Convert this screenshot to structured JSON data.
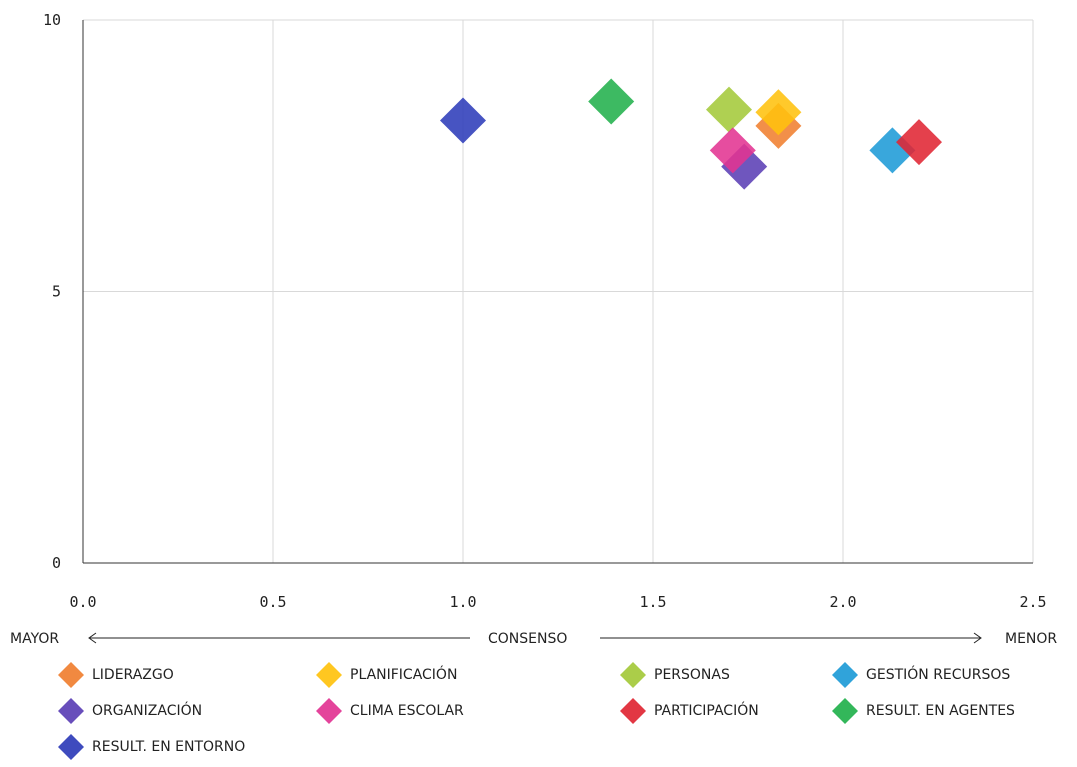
{
  "chart_data": {
    "type": "scatter",
    "title": "",
    "xlabel": "",
    "ylabel": "",
    "xlim": [
      0,
      2.5
    ],
    "ylim": [
      0,
      10
    ],
    "x_ticks": [
      "0.0",
      "0.5",
      "1.0",
      "1.5",
      "2.0",
      "2.5"
    ],
    "y_ticks": [
      "0",
      "5",
      "10"
    ],
    "grid": true,
    "marker": "diamond",
    "axis_caption": {
      "left": "MAYOR",
      "center": "CONSENSO",
      "right": "MENOR"
    },
    "legend_position": "bottom",
    "series": [
      {
        "name": "LIDERAZGO",
        "color": "#F07F30",
        "points": [
          {
            "x": 1.83,
            "y": 8.05
          }
        ]
      },
      {
        "name": "PLANIFICACIÓN",
        "color": "#FFC20E",
        "points": [
          {
            "x": 1.83,
            "y": 8.3
          }
        ]
      },
      {
        "name": "PERSONAS",
        "color": "#A4C93A",
        "points": [
          {
            "x": 1.7,
            "y": 8.35
          }
        ]
      },
      {
        "name": "GESTIÓN RECURSOS",
        "color": "#1E9BD7",
        "points": [
          {
            "x": 2.13,
            "y": 7.6
          }
        ]
      },
      {
        "name": "ORGANIZACIÓN",
        "color": "#5B3FB5",
        "points": [
          {
            "x": 1.74,
            "y": 7.3
          }
        ]
      },
      {
        "name": "CLIMA ESCOLAR",
        "color": "#E23492",
        "points": [
          {
            "x": 1.71,
            "y": 7.6
          }
        ]
      },
      {
        "name": "PARTICIPACIÓN",
        "color": "#E02633",
        "points": [
          {
            "x": 2.2,
            "y": 7.75
          }
        ]
      },
      {
        "name": "RESULT. EN AGENTES",
        "color": "#22B14C",
        "points": [
          {
            "x": 1.39,
            "y": 8.5
          }
        ]
      },
      {
        "name": "RESULT. EN ENTORNO",
        "color": "#2E3CB9",
        "points": [
          {
            "x": 1.0,
            "y": 8.15
          }
        ]
      }
    ]
  }
}
